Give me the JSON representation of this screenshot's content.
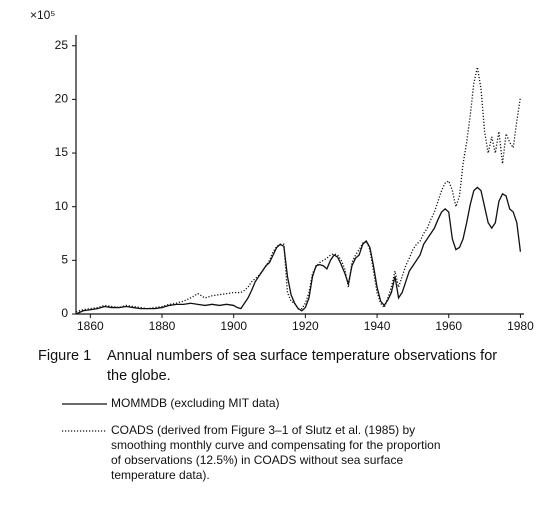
{
  "chart_data": {
    "type": "line",
    "multiplier_label": "×10⁵",
    "caption_label": "Figure 1",
    "caption_lines": [
      "Annual numbers of sea surface temperature observations for",
      "the globe."
    ],
    "xlim": [
      1856,
      1981
    ],
    "ylim": [
      0,
      26
    ],
    "xticks": [
      1860,
      1880,
      1900,
      1920,
      1940,
      1960,
      1980
    ],
    "yticks": [
      0,
      5,
      10,
      15,
      20,
      25
    ],
    "grid": false,
    "x": [
      1856,
      1858,
      1860,
      1862,
      1864,
      1866,
      1868,
      1870,
      1872,
      1874,
      1876,
      1878,
      1880,
      1882,
      1884,
      1886,
      1888,
      1890,
      1892,
      1894,
      1896,
      1898,
      1900,
      1901,
      1902,
      1903,
      1904,
      1905,
      1906,
      1907,
      1908,
      1909,
      1910,
      1911,
      1912,
      1913,
      1914,
      1915,
      1916,
      1917,
      1918,
      1919,
      1920,
      1921,
      1922,
      1923,
      1924,
      1925,
      1926,
      1927,
      1928,
      1929,
      1930,
      1931,
      1932,
      1933,
      1934,
      1935,
      1936,
      1937,
      1938,
      1939,
      1940,
      1941,
      1942,
      1943,
      1944,
      1945,
      1946,
      1947,
      1948,
      1949,
      1950,
      1951,
      1952,
      1953,
      1954,
      1955,
      1956,
      1957,
      1958,
      1959,
      1960,
      1961,
      1962,
      1963,
      1964,
      1965,
      1966,
      1967,
      1968,
      1969,
      1970,
      1971,
      1972,
      1973,
      1974,
      1975,
      1976,
      1977,
      1978,
      1979,
      1980
    ],
    "series": [
      {
        "name": [
          "MOMMDB (excluding MIT data)"
        ],
        "color": "#111111",
        "dash": "solid",
        "values": [
          0,
          0.3,
          0.4,
          0.5,
          0.7,
          0.6,
          0.6,
          0.7,
          0.6,
          0.5,
          0.5,
          0.5,
          0.6,
          0.8,
          0.9,
          0.9,
          1.0,
          0.9,
          0.8,
          0.9,
          0.8,
          0.9,
          0.8,
          0.6,
          0.5,
          1.0,
          1.5,
          2.2,
          3.0,
          3.5,
          4.0,
          4.5,
          4.8,
          5.5,
          6.2,
          6.5,
          6.3,
          3.5,
          1.8,
          1.0,
          0.5,
          0.3,
          0.6,
          1.5,
          3.5,
          4.5,
          4.6,
          4.5,
          4.2,
          5.0,
          5.5,
          5.3,
          4.6,
          3.8,
          2.8,
          4.5,
          5.2,
          5.5,
          6.5,
          6.8,
          6.2,
          4.5,
          2.5,
          1.2,
          0.8,
          1.3,
          2.0,
          3.5,
          1.5,
          2.0,
          3.0,
          4.0,
          4.5,
          5.0,
          5.5,
          6.5,
          7.0,
          7.5,
          8.0,
          8.8,
          9.5,
          9.8,
          9.5,
          7.0,
          6.0,
          6.2,
          7.0,
          8.5,
          10.2,
          11.5,
          11.8,
          11.5,
          10.0,
          8.5,
          8.0,
          8.5,
          10.5,
          11.2,
          11.0,
          9.8,
          9.5,
          8.5,
          5.8
        ]
      },
      {
        "name": [
          "COADS (derived from Figure 3–1 of Slutz et al. (1985) by",
          "smoothing monthly curve and compensating for the proportion",
          "of observations (12.5%) in COADS without sea surface",
          "temperature data)."
        ],
        "color": "#111111",
        "dash": "dotted",
        "values": [
          0.2,
          0.4,
          0.5,
          0.6,
          0.8,
          0.7,
          0.6,
          0.8,
          0.7,
          0.6,
          0.5,
          0.6,
          0.7,
          0.9,
          1.0,
          1.2,
          1.5,
          1.9,
          1.5,
          1.7,
          1.8,
          1.9,
          2.0,
          2.0,
          2.0,
          2.2,
          2.5,
          3.0,
          3.3,
          3.6,
          4.0,
          4.5,
          5.0,
          5.8,
          6.3,
          6.5,
          6.5,
          2.0,
          1.2,
          1.0,
          0.5,
          0.5,
          1.0,
          2.0,
          3.8,
          4.4,
          4.8,
          5.0,
          5.2,
          5.5,
          5.6,
          5.5,
          5.0,
          4.2,
          2.5,
          4.8,
          5.5,
          6.0,
          6.6,
          6.8,
          6.0,
          4.0,
          2.0,
          1.0,
          0.6,
          1.5,
          2.5,
          4.0,
          2.5,
          3.5,
          4.5,
          5.2,
          6.0,
          6.5,
          6.8,
          7.5,
          8.0,
          8.8,
          9.5,
          10.5,
          11.5,
          12.2,
          12.4,
          11.5,
          10.0,
          11.0,
          14.0,
          16.0,
          18.5,
          21.5,
          23.0,
          21.0,
          17.0,
          15.0,
          16.5,
          15.0,
          17.0,
          14.0,
          16.8,
          16.0,
          15.5,
          18.0,
          20.2
        ]
      }
    ]
  }
}
